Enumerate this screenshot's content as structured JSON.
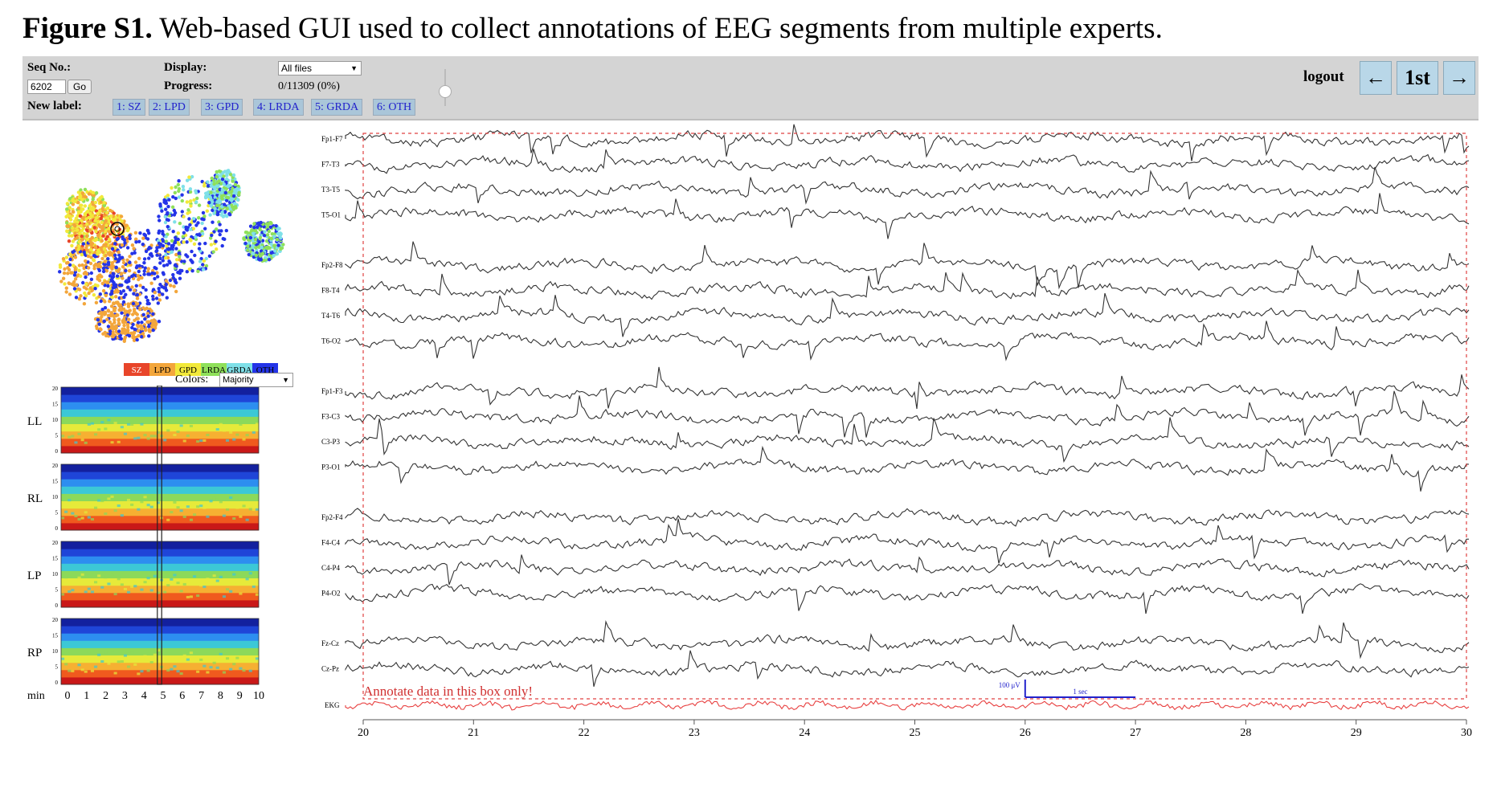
{
  "caption": {
    "bold": "Figure S1.",
    "rest": " Web-based GUI used to collect annotations of EEG segments from multiple experts."
  },
  "toolbar": {
    "seq_label": "Seq No.:",
    "seq_value": "6202",
    "go_label": "Go",
    "display_label": "Display:",
    "display_value": "All files",
    "progress_label": "Progress:",
    "progress_value": "0/11309 (0%)",
    "new_label": "New label:",
    "labels": [
      "1: SZ",
      "2: LPD",
      "3: GPD",
      "4: LRDA",
      "5: GRDA",
      "6: OTH"
    ],
    "logout": "logout",
    "prev": "←",
    "first": "1st",
    "next": "→"
  },
  "legend": {
    "items": [
      "SZ",
      "LPD",
      "GPD",
      "LRDA",
      "GRDA",
      "OTH"
    ],
    "colors": [
      "#e8452a",
      "#f3a63b",
      "#f2e93a",
      "#8fe05a",
      "#7fe0e8",
      "#2434e8"
    ],
    "colors_label": "Colors:",
    "colors_value": "Majority"
  },
  "spectrograms": {
    "labels": [
      "LL",
      "RL",
      "LP",
      "RP"
    ],
    "yticks": [
      "20",
      "15",
      "10",
      "5",
      "0"
    ],
    "xticks": [
      "0",
      "1",
      "2",
      "3",
      "4",
      "5",
      "6",
      "7",
      "8",
      "9",
      "10"
    ],
    "xunit": "min"
  },
  "eeg": {
    "groups": [
      [
        "Fp1-F7",
        "F7-T3",
        "T3-T5",
        "T5-O1"
      ],
      [
        "Fp2-F8",
        "F8-T4",
        "T4-T6",
        "T6-O2"
      ],
      [
        "Fp1-F3",
        "F3-C3",
        "C3-P3",
        "P3-O1"
      ],
      [
        "Fp2-F4",
        "F4-C4",
        "C4-P4",
        "P4-O2"
      ],
      [
        "Fz-Cz",
        "Cz-Pz"
      ]
    ],
    "ekg_label": "EKG",
    "xticks": [
      "20",
      "21",
      "22",
      "23",
      "24",
      "25",
      "26",
      "27",
      "28",
      "29",
      "30"
    ],
    "annotate_note": "Annotate data in this box only!",
    "scale_uv": "100 μV",
    "scale_sec": "1 sec"
  }
}
